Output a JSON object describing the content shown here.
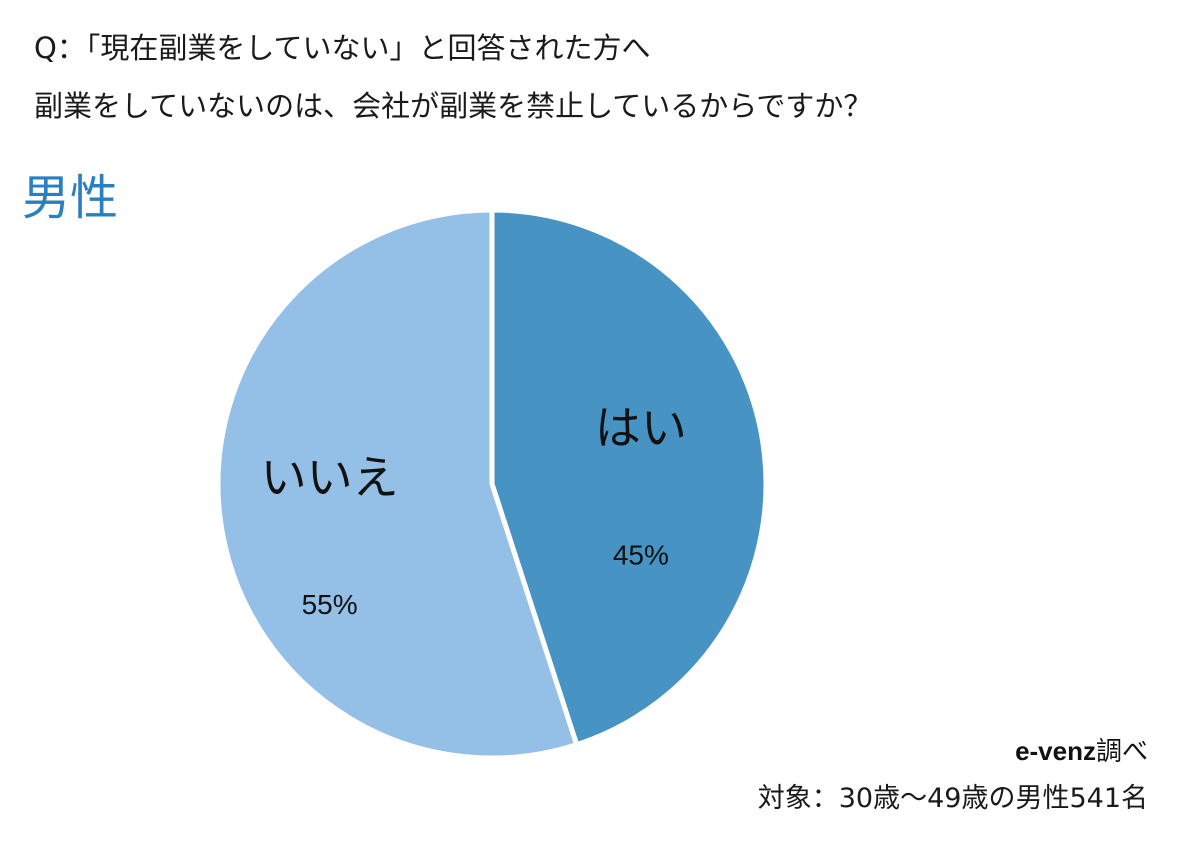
{
  "question": {
    "line1": "Q：「現在副業をしていない」と回答された方へ",
    "line2": "副業をしていないのは、会社が副業を禁止しているからですか？"
  },
  "heading": "男性",
  "chart_data": {
    "type": "pie",
    "title": "",
    "start_angle_deg": 0,
    "direction": "clockwise",
    "slices": [
      {
        "label": "はい",
        "value": 45,
        "value_label": "45%",
        "color": "#4794c4"
      },
      {
        "label": "いいえ",
        "value": 55,
        "value_label": "55%",
        "color": "#94bfe6"
      }
    ],
    "border_color": "#ffffff"
  },
  "source": {
    "brand": "e-venz",
    "suffix": "調べ"
  },
  "target_note": "対象：30歳〜49歳の男性541名",
  "colors": {
    "heading": "#2a7fc0",
    "text": "#1a1a1a"
  }
}
